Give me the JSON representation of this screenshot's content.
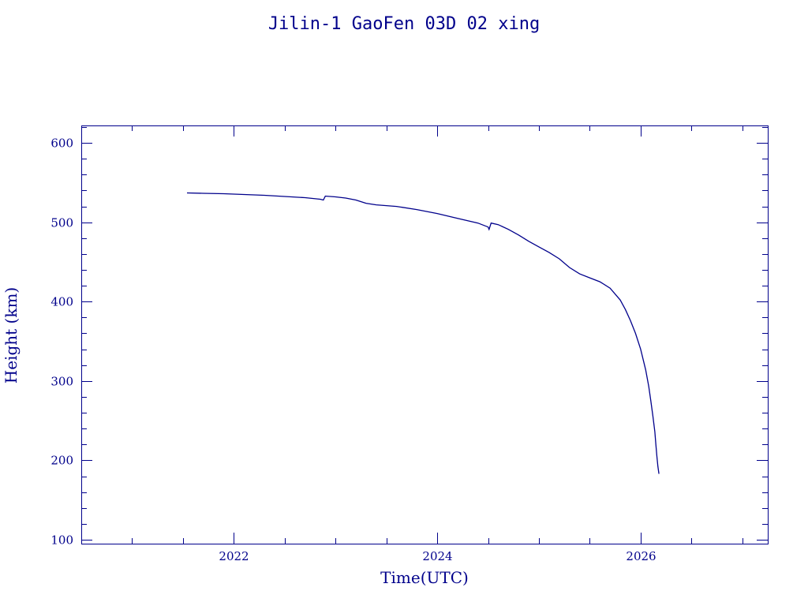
{
  "chart_data": {
    "type": "line",
    "title": "Jilin-1 GaoFen 03D 02 xing",
    "xlabel": "Time(UTC)",
    "ylabel": "Height (km)",
    "xlim": [
      2020.5,
      2027.25
    ],
    "ylim": [
      95,
      622
    ],
    "x_ticks": [
      2022,
      2024,
      2026
    ],
    "y_ticks": [
      100,
      200,
      300,
      400,
      500,
      600
    ],
    "grid": false,
    "color": "#00008b",
    "series": [
      {
        "x": [
          2021.54,
          2021.7,
          2021.9,
          2022.1,
          2022.3,
          2022.5,
          2022.7,
          2022.85,
          2022.88,
          2022.9,
          2023.0,
          2023.1,
          2023.2,
          2023.3,
          2023.4,
          2023.6,
          2023.8,
          2024.0,
          2024.2,
          2024.4,
          2024.5,
          2024.51,
          2024.53,
          2024.6,
          2024.7,
          2024.8,
          2024.9,
          2025.0,
          2025.1,
          2025.2,
          2025.3,
          2025.4,
          2025.5,
          2025.6,
          2025.7,
          2025.8,
          2025.85,
          2025.9,
          2025.95,
          2026.0,
          2026.05,
          2026.08,
          2026.1,
          2026.12,
          2026.14,
          2026.15,
          2026.16,
          2026.17,
          2026.18
        ],
        "y": [
          537,
          536.5,
          536,
          535,
          534,
          532.5,
          531,
          529,
          528,
          533,
          532,
          530.5,
          528,
          524,
          522,
          520,
          516,
          511,
          505,
          499,
          494,
          491,
          499,
          497,
          491,
          484,
          476,
          469,
          462,
          454,
          443,
          435,
          430,
          425,
          417,
          402,
          390,
          376,
          360,
          340,
          314,
          293,
          275,
          256,
          236,
          220,
          205,
          192,
          183
        ]
      }
    ]
  }
}
